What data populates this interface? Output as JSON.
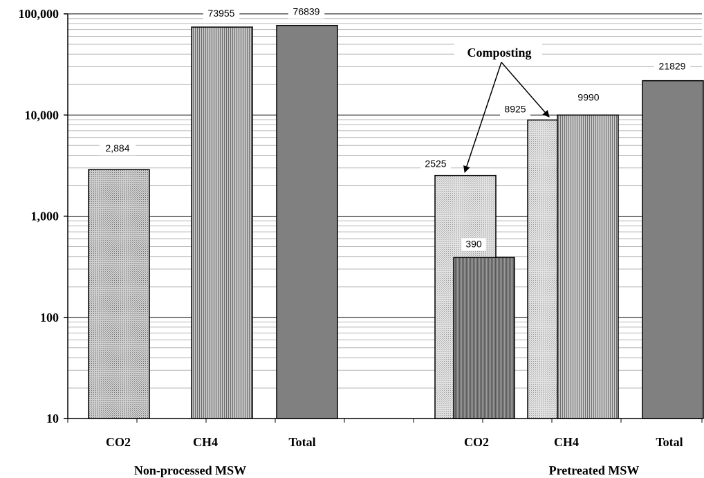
{
  "chart_data": {
    "type": "bar",
    "yscale": "log",
    "ylim": [
      10,
      100000
    ],
    "y_ticks": [
      "10",
      "100",
      "1,000",
      "10,000",
      "100,000"
    ],
    "grid": "horizontal minor log gridlines",
    "groups": [
      {
        "label": "Non-processed MSW",
        "bars": [
          {
            "category": "CO2",
            "value": 2884,
            "label": "2,884"
          },
          {
            "category": "CH4",
            "value": 73955,
            "label": "73955"
          },
          {
            "category": "Total",
            "value": 76839,
            "label": "76839"
          }
        ]
      },
      {
        "label": "Pretreated MSW",
        "bars": [
          {
            "category": "CO2",
            "value": 2525,
            "label": "2525",
            "variant": "composting"
          },
          {
            "category": "CO2",
            "value": 390,
            "label": "390"
          },
          {
            "category": "CH4",
            "value": 8925,
            "label": "8925",
            "variant": "composting"
          },
          {
            "category": "CH4",
            "value": 9990,
            "label": "9990"
          },
          {
            "category": "Total",
            "value": 21829,
            "label": "21829"
          }
        ]
      }
    ],
    "annotation": "Composting",
    "colors": {
      "co2_fill": "#bdbdbd",
      "ch4_fill": "#a6a6a6",
      "total_fill": "#808080",
      "composting_fill": "#d6d6d6",
      "pre_co2_fill": "#8c8c8c",
      "pre_ch4_fill": "#b0b0b0"
    }
  }
}
